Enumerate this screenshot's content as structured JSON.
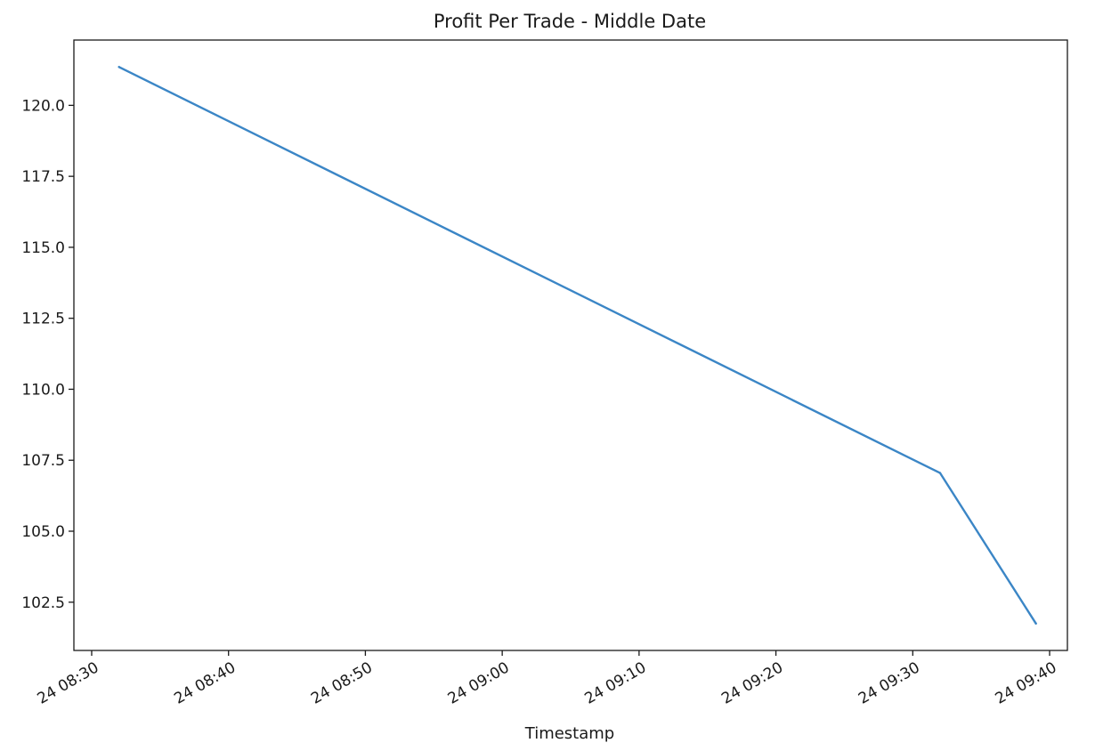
{
  "chart_data": {
    "type": "line",
    "title": "Profit Per Trade - Middle Date",
    "xlabel": "Timestamp",
    "ylabel": "",
    "x_unit": "minutes since 24 08:30",
    "x": [
      2,
      62,
      69
    ],
    "y": [
      121.35,
      107.05,
      101.75
    ],
    "xlim": [
      -1.3,
      71.3
    ],
    "ylim": [
      100.8,
      122.3
    ],
    "x_ticks": [
      {
        "value": 0,
        "label": "24 08:30"
      },
      {
        "value": 10,
        "label": "24 08:40"
      },
      {
        "value": 20,
        "label": "24 08:50"
      },
      {
        "value": 30,
        "label": "24 09:00"
      },
      {
        "value": 40,
        "label": "24 09:10"
      },
      {
        "value": 50,
        "label": "24 09:20"
      },
      {
        "value": 60,
        "label": "24 09:30"
      },
      {
        "value": 70,
        "label": "24 09:40"
      }
    ],
    "y_ticks": [
      {
        "value": 102.5,
        "label": "102.5"
      },
      {
        "value": 105.0,
        "label": "105.0"
      },
      {
        "value": 107.5,
        "label": "107.5"
      },
      {
        "value": 110.0,
        "label": "110.0"
      },
      {
        "value": 112.5,
        "label": "112.5"
      },
      {
        "value": 115.0,
        "label": "115.0"
      },
      {
        "value": 117.5,
        "label": "117.5"
      },
      {
        "value": 120.0,
        "label": "120.0"
      }
    ],
    "grid": false,
    "series_color": "#3b86c6"
  }
}
